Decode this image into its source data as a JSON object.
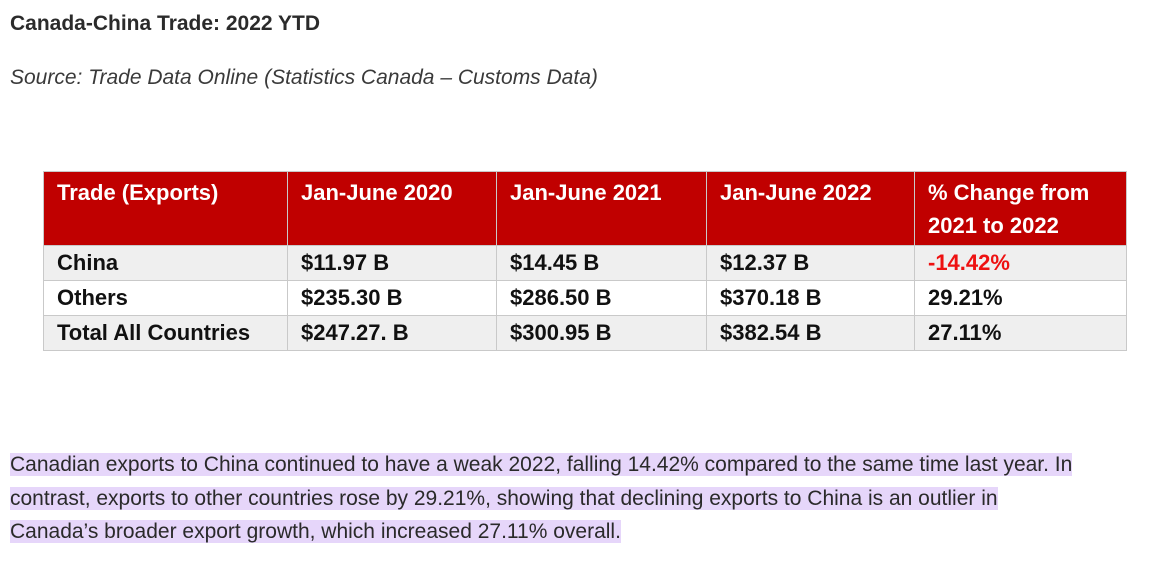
{
  "heading": "Canada-China Trade: 2022 YTD",
  "source": "Source: Trade Data Online (Statistics Canada – Customs Data)",
  "table": {
    "headers": [
      "Trade (Exports)",
      "Jan-June 2020",
      "Jan-June 2021",
      "Jan-June 2022",
      "% Change from 2021 to 2022"
    ],
    "rows": [
      [
        "China",
        "$11.97 B",
        "$14.45 B",
        "$12.37 B",
        "-14.42%"
      ],
      [
        "Others",
        "$235.30 B",
        "$286.50 B",
        "$370.18 B",
        "29.21%"
      ],
      [
        "Total All Countries",
        "$247.27. B",
        "$300.95 B",
        "$382.54 B",
        "27.11%"
      ]
    ],
    "header_color": "#c00000",
    "negative_color": "#ee1111"
  },
  "summary": {
    "lines": [
      "Canadian exports to China continued to have a weak 2022, falling 14.42% compared to the same time last year. In",
      "contrast, exports to other countries rose by 29.21%, showing that declining exports to China is an outlier in",
      "Canada’s broader export growth, which increased 27.11% overall."
    ],
    "highlight_color": "#e6d6fa"
  }
}
